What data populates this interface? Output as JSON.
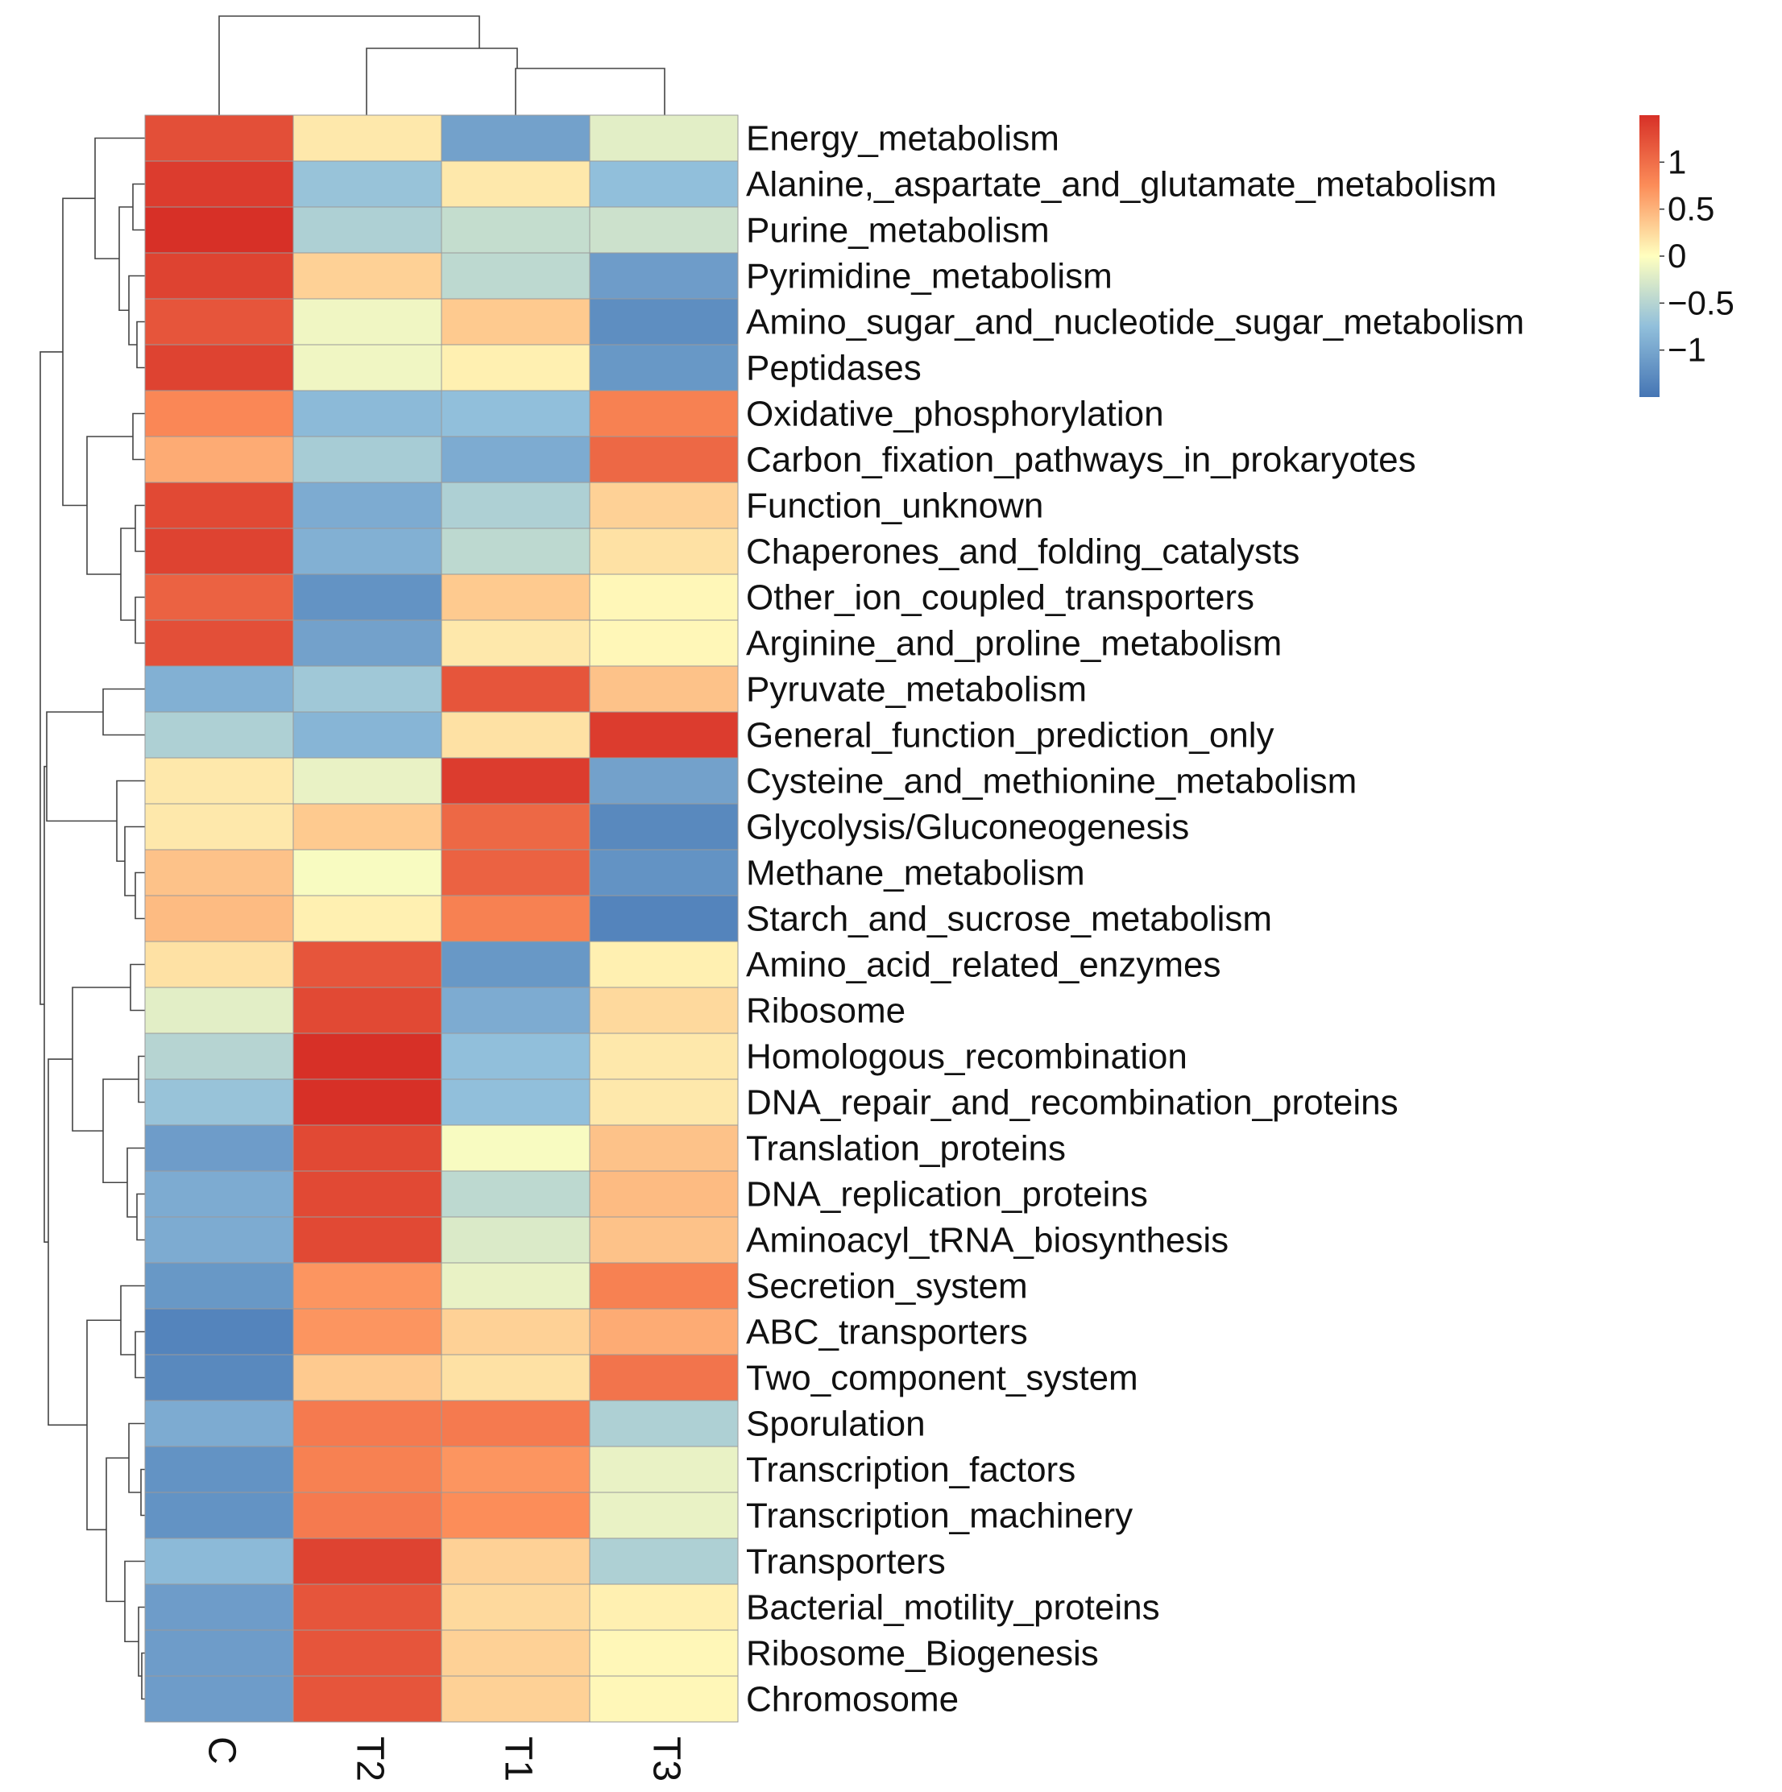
{
  "chart_data": {
    "type": "heatmap",
    "title": "",
    "columns": [
      "C",
      "T2",
      "T1",
      "T3"
    ],
    "rows": [
      "Energy_metabolism",
      "Alanine,_aspartate_and_glutamate_metabolism",
      "Purine_metabolism",
      "Pyrimidine_metabolism",
      "Amino_sugar_and_nucleotide_sugar_metabolism",
      "Peptidases",
      "Oxidative_phosphorylation",
      "Carbon_fixation_pathways_in_prokaryotes",
      "Function_unknown",
      "Chaperones_and_folding_catalysts",
      "Other_ion_coupled_transporters",
      "Arginine_and_proline_metabolism",
      "Pyruvate_metabolism",
      "General_function_prediction_only",
      "Cysteine_and_methionine_metabolism",
      "Glycolysis/Gluconeogenesis",
      "Methane_metabolism",
      "Starch_and_sucrose_metabolism",
      "Amino_acid_related_enzymes",
      "Ribosome",
      "Homologous_recombination",
      "DNA_repair_and_recombination_proteins",
      "Translation_proteins",
      "DNA_replication_proteins",
      "Aminoacyl_tRNA_biosynthesis",
      "Secretion_system",
      "ABC_transporters",
      "Two_component_system",
      "Sporulation",
      "Transcription_factors",
      "Transcription_machinery",
      "Transporters",
      "Bacterial_motility_proteins",
      "Ribosome_Biogenesis",
      "Chromosome"
    ],
    "values": [
      [
        1.25,
        0.15,
        -1.05,
        -0.2
      ],
      [
        1.4,
        -0.7,
        0.15,
        -0.75
      ],
      [
        1.5,
        -0.55,
        -0.4,
        -0.35
      ],
      [
        1.35,
        0.3,
        -0.45,
        -1.1
      ],
      [
        1.2,
        -0.1,
        0.35,
        -1.25
      ],
      [
        1.35,
        -0.1,
        0.1,
        -1.15
      ],
      [
        0.8,
        -0.8,
        -0.75,
        0.85
      ],
      [
        0.55,
        -0.6,
        -0.95,
        1.05
      ],
      [
        1.3,
        -0.95,
        -0.55,
        0.3
      ],
      [
        1.35,
        -0.9,
        -0.45,
        0.2
      ],
      [
        1.1,
        -1.2,
        0.35,
        0.05
      ],
      [
        1.25,
        -1.05,
        0.15,
        0.05
      ],
      [
        -0.9,
        -0.65,
        1.2,
        0.4
      ],
      [
        -0.55,
        -0.85,
        0.2,
        1.4
      ],
      [
        0.15,
        -0.15,
        1.4,
        -1.05
      ],
      [
        0.15,
        0.35,
        1.05,
        -1.3
      ],
      [
        0.4,
        -0.05,
        1.1,
        -1.2
      ],
      [
        0.45,
        0.1,
        0.85,
        -1.35
      ],
      [
        0.2,
        1.2,
        -1.15,
        0.1
      ],
      [
        -0.2,
        1.3,
        -0.95,
        0.25
      ],
      [
        -0.5,
        1.5,
        -0.75,
        0.15
      ],
      [
        -0.7,
        1.5,
        -0.75,
        0.15
      ],
      [
        -1.1,
        1.3,
        -0.05,
        0.4
      ],
      [
        -0.95,
        1.3,
        -0.45,
        0.45
      ],
      [
        -0.95,
        1.3,
        -0.25,
        0.4
      ],
      [
        -1.15,
        0.7,
        -0.15,
        0.85
      ],
      [
        -1.35,
        0.7,
        0.3,
        0.55
      ],
      [
        -1.3,
        0.35,
        0.2,
        0.95
      ],
      [
        -0.95,
        0.9,
        0.9,
        -0.55
      ],
      [
        -1.2,
        0.85,
        0.7,
        -0.15
      ],
      [
        -1.2,
        0.9,
        0.75,
        -0.15
      ],
      [
        -0.8,
        1.35,
        0.3,
        -0.55
      ],
      [
        -1.1,
        1.2,
        0.25,
        0.1
      ],
      [
        -1.1,
        1.2,
        0.3,
        0.05
      ],
      [
        -1.1,
        1.2,
        0.3,
        0.05
      ]
    ],
    "color_scale": {
      "low_color": "#4575b4",
      "mid_color": "#ffffbf",
      "high_color": "#d73027",
      "range": [
        -1.5,
        1.5
      ],
      "ticks": [
        1,
        0.5,
        0,
        -0.5,
        -1
      ],
      "tick_labels": [
        "1",
        "0.5",
        "0",
        "−0.5",
        "−1"
      ]
    },
    "row_dendrogram": true,
    "column_dendrogram": true
  }
}
